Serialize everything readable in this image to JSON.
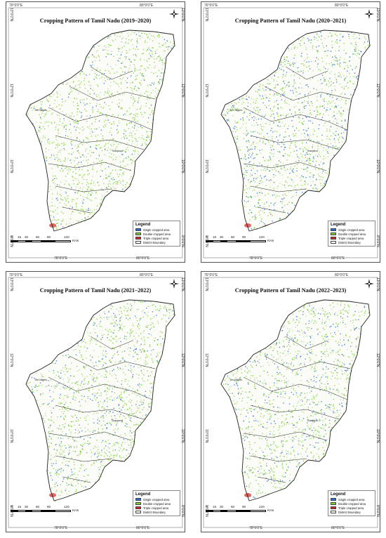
{
  "panels": [
    {
      "title": "Cropping Pattern of Tamil Nadu (2019–2020)"
    },
    {
      "title": "Cropping Pattern of Tamil Nadu (2020–2021)"
    },
    {
      "title": "Cropping Pattern of Tamil Nadu (2021–2022)"
    },
    {
      "title": "Cropping Pattern of Tamil Nadu (2022–2023)"
    }
  ],
  "axis": {
    "top_left": "76°0'0\"E",
    "top_right": "80°0'0\"E",
    "bottom_mid": "78°0'0\"E",
    "bottom_right": "80°0'0\"E",
    "lat_top": "13°0'0\"N",
    "lat_12": "12°0'0\"N",
    "lat_10": "10°0'0\"N",
    "lat_8": "8°0'0\"N"
  },
  "legend": {
    "title": "Legend",
    "items": [
      {
        "label": "Single cropped area",
        "color": "#2b6fd6"
      },
      {
        "label": "Double cropped area",
        "color": "#7ccf2e"
      },
      {
        "label": "Triple cropped area",
        "color": "#d8241f"
      },
      {
        "label": "District Boundary",
        "color": "#ffffff"
      }
    ]
  },
  "scale": {
    "ticks": [
      "0",
      "15",
      "30",
      "60",
      "90",
      "120"
    ],
    "unit": "Kms"
  },
  "districts": {
    "nilgiris": "The Nilgiris",
    "thanjavur": "Thanjavur"
  },
  "colors": {
    "single": "#2b6fd6",
    "double": "#7ccf2e",
    "triple": "#d8241f",
    "boundary": "#222222"
  }
}
